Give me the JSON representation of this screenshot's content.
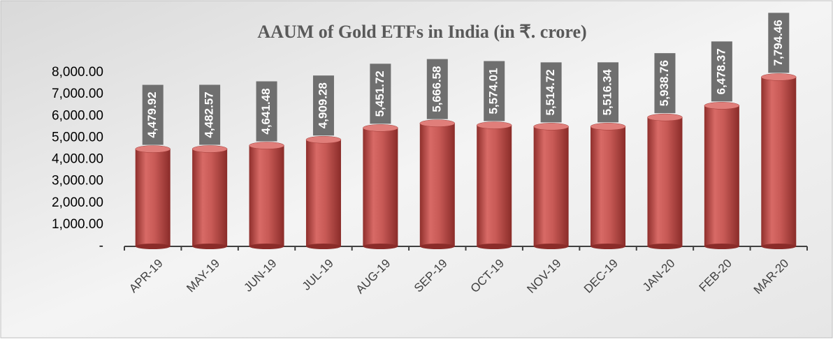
{
  "chart_data": {
    "type": "bar",
    "title": "AAUM of Gold ETFs in India (in ₹. crore)",
    "categories": [
      "APR-19",
      "MAY-19",
      "JUN-19",
      "JUL-19",
      "AUG-19",
      "SEP-19",
      "OCT-19",
      "NOV-19",
      "DEC-19",
      "JAN-20",
      "FEB-20",
      "MAR-20"
    ],
    "values": [
      4479.92,
      4482.57,
      4641.48,
      4909.28,
      5451.72,
      5666.58,
      5574.01,
      5514.72,
      5516.34,
      5938.76,
      6478.37,
      7794.46
    ],
    "value_labels": [
      "4,479.92",
      "4,482.57",
      "4,641.48",
      "4,909.28",
      "5,451.72",
      "5,666.58",
      "5,574.01",
      "5,514.72",
      "5,516.34",
      "5,938.76",
      "6,478.37",
      "7,794.46"
    ],
    "color": "#c0504d",
    "ylim": [
      0,
      8000
    ],
    "yticks": [
      {
        "value": 0,
        "label": "-"
      },
      {
        "value": 1000,
        "label": "1,000.00"
      },
      {
        "value": 2000,
        "label": "2,000.00"
      },
      {
        "value": 3000,
        "label": "3,000.00"
      },
      {
        "value": 4000,
        "label": "4,000.00"
      },
      {
        "value": 5000,
        "label": "5,000.00"
      },
      {
        "value": 6000,
        "label": "6,000.00"
      },
      {
        "value": 7000,
        "label": "7,000.00"
      },
      {
        "value": 8000,
        "label": "8,000.00"
      }
    ],
    "grid": false
  }
}
